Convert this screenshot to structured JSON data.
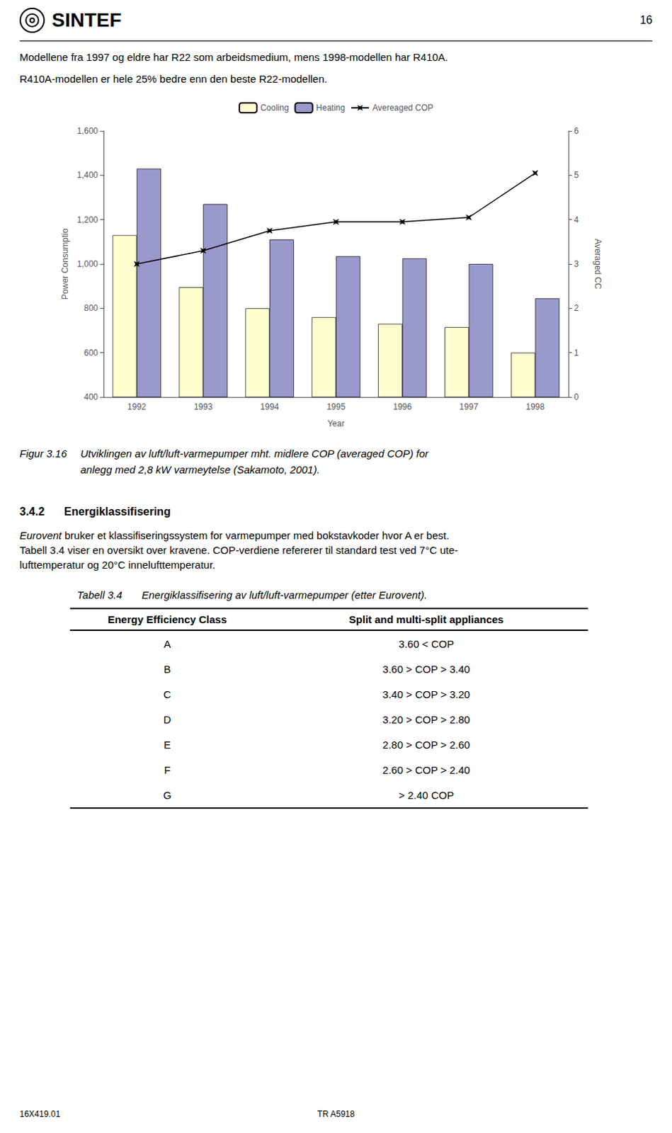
{
  "header": {
    "logo": "SINTEF",
    "page_number": "16"
  },
  "paragraphs": [
    "Modellene fra 1997 og eldre har R22 som arbeidsmedium, mens 1998-modellen har R410A.",
    "R410A-modellen er hele 25% bedre enn den beste R22-modellen."
  ],
  "chart_data": {
    "type": "bar",
    "categories": [
      "1992",
      "1993",
      "1994",
      "1995",
      "1996",
      "1997",
      "1998"
    ],
    "series": [
      {
        "name": "Cooling",
        "type": "bar",
        "color": "#FFFFD0",
        "values": [
          1130,
          895,
          800,
          760,
          730,
          715,
          600
        ]
      },
      {
        "name": "Heating",
        "type": "bar",
        "color": "#9999CC",
        "values": [
          1430,
          1270,
          1110,
          1035,
          1025,
          1000,
          845
        ]
      },
      {
        "name": "Avereaged COP",
        "type": "line",
        "axis": "y2",
        "color": "#000000",
        "marker": "star",
        "line_style": "solid",
        "values": [
          3.0,
          3.3,
          3.75,
          3.95,
          3.95,
          4.05,
          5.05
        ]
      }
    ],
    "xlabel": "Year",
    "ylabel": "Power Consumptio",
    "y2label": "Averaged CC",
    "ylim": [
      400,
      1600
    ],
    "yticks": [
      400,
      600,
      800,
      1000,
      1200,
      1400,
      1600
    ],
    "y2lim": [
      0,
      6
    ],
    "y2ticks": [
      0,
      1,
      2,
      3,
      4,
      5,
      6
    ],
    "grid": false,
    "legend": "top"
  },
  "figure_caption": {
    "label": "Figur 3.16",
    "text": "Utviklingen av luft/luft-varmepumper mht. midlere COP (averaged COP) for\nanlegg med 2,8 kW varmeytelse (Sakamoto, 2001)."
  },
  "section": {
    "number": "3.4.2",
    "title": "Energiklassifisering",
    "paragraph": "Eurovent bruker et klassifiseringssystem for varmepumper med bokstavkoder hvor A er best.\nTabell 3.4 viser en oversikt over kravene. COP-verdiene refererer til standard test ved 7°C ute-\nlufttemperatur og 20°C innelufttemperatur."
  },
  "table": {
    "label": "Tabell 3.4",
    "caption": "Energiklassifisering av luft/luft-varmepumper (etter Eurovent).",
    "columns": [
      "Energy Efficiency Class",
      "Split and multi-split appliances"
    ],
    "rows": [
      [
        "A",
        "3.60 < COP"
      ],
      [
        "B",
        "3.60 >  COP > 3.40"
      ],
      [
        "C",
        "3.40 > COP > 3.20"
      ],
      [
        "D",
        "3.20 > COP > 2.80"
      ],
      [
        "E",
        "2.80 > COP > 2.60"
      ],
      [
        "F",
        "2.60 > COP > 2.40"
      ],
      [
        "G",
        "> 2.40  COP"
      ]
    ]
  },
  "footer": [
    "16X419.01",
    "TR A5918"
  ]
}
